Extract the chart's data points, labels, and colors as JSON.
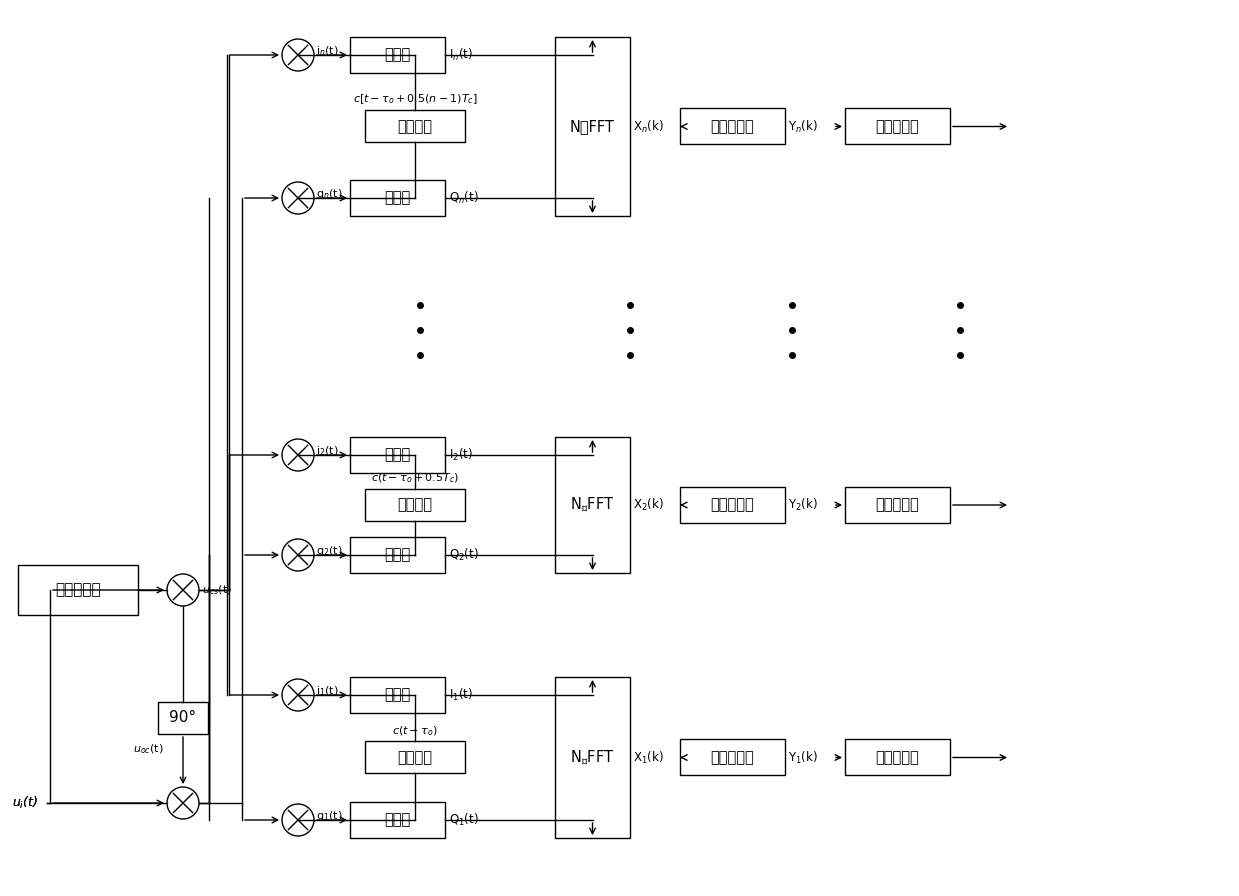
{
  "bg_color": "#ffffff",
  "line_color": "#000000",
  "box_color": "#ffffff",
  "text_color": "#000000",
  "rows": [
    {
      "label": "n",
      "i_label": "iₙ(t)",
      "q_label": "qₙ(t)",
      "I_label": "Iₙ(t)",
      "Q_label": "Qₙ(t)",
      "code_label": "c[t-τₒ+0.5(n-1)Tₑ]",
      "X_label": "Xₙ(k)",
      "Y_label": "Yₙ(k)"
    },
    {
      "label": "2",
      "i_label": "i₂(t)",
      "q_label": "q₂(t)",
      "I_label": "I₂(t)",
      "Q_label": "Q₂(t)",
      "code_label": "c(t-τₒ+0.5Tₑ)",
      "X_label": "X₂(k)",
      "Y_label": "Y₂(k)"
    },
    {
      "label": "1",
      "i_label": "i₁(t)",
      "q_label": "q₁(t)",
      "I_label": "I₁(t)",
      "Q_label": "Q₁(t)",
      "code_label": "c(t-τₒ)",
      "X_label": "X₁(k)",
      "Y_label": "Y₁(k)"
    }
  ]
}
